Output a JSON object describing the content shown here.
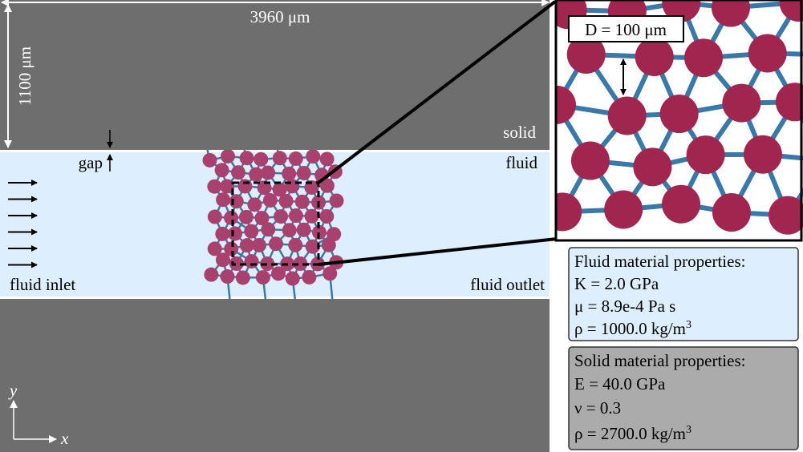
{
  "dimensions": {
    "width": "3960 μm",
    "height": "1100 μm"
  },
  "labels": {
    "solid": "solid",
    "gap": "gap",
    "fluid": "fluid",
    "inlet": "fluid inlet",
    "outlet": "fluid outlet"
  },
  "zoom": {
    "diameter": "D = 100 μm"
  },
  "fluid_properties": {
    "title": "Fluid material properties:",
    "lines": [
      "K = 2.0 GPa",
      "μ = 8.9e-4 Pa s"
    ],
    "density": {
      "text": "ρ = 1000.0 kg/m",
      "sup": "3"
    }
  },
  "solid_properties": {
    "title": "Solid material properties:",
    "lines": [
      "E = 40.0 GPa",
      "ν = 0.3"
    ],
    "density": {
      "text": "ρ = 2700.0 kg/m",
      "sup": "3"
    }
  },
  "axes": {
    "x": "x",
    "y": "y"
  }
}
